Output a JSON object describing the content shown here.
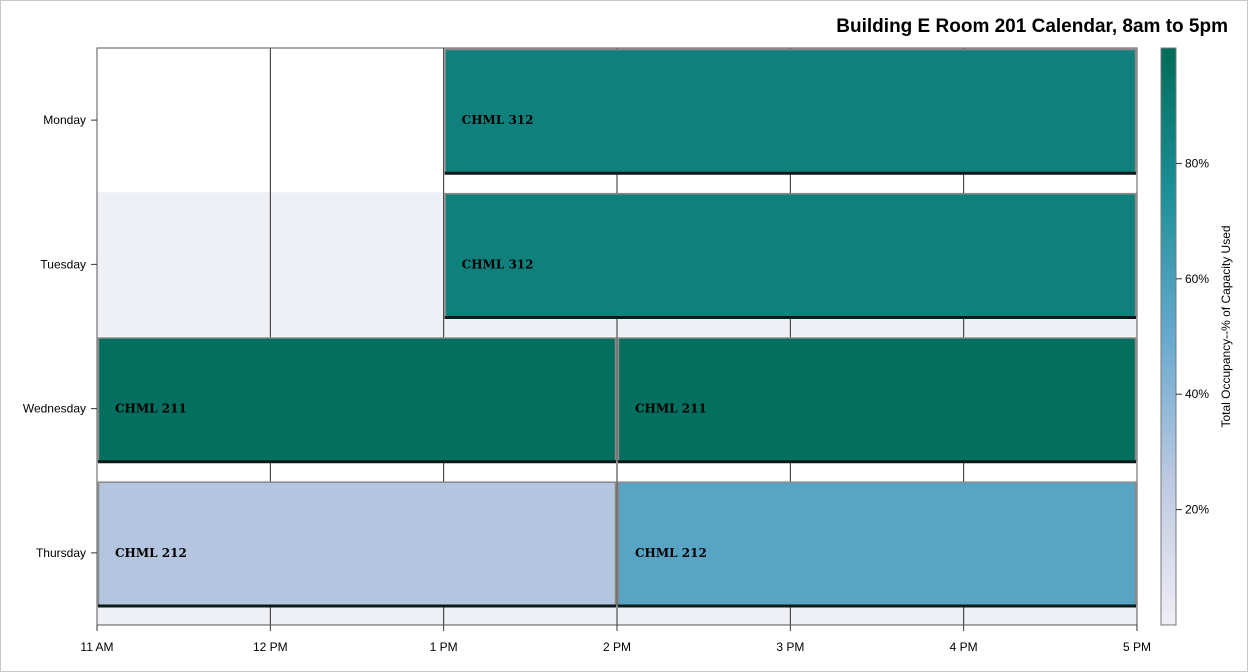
{
  "chart_data": {
    "type": "heatmap",
    "title": "Building E Room 201 Calendar, 8am to 5pm",
    "xlabel": "",
    "ylabel": "",
    "x_ticks": [
      "11 AM",
      "12 PM",
      "1 PM",
      "2 PM",
      "3 PM",
      "4 PM",
      "5 PM"
    ],
    "x_range_hours": [
      11,
      17
    ],
    "days": [
      "Monday",
      "Tuesday",
      "Wednesday",
      "Thursday"
    ],
    "events": [
      {
        "day": "Monday",
        "start_hour": 13,
        "end_hour": 17,
        "label": "CHML 312",
        "occupancy_pct": 86
      },
      {
        "day": "Tuesday",
        "start_hour": 13,
        "end_hour": 17,
        "label": "CHML 312",
        "occupancy_pct": 86
      },
      {
        "day": "Wednesday",
        "start_hour": 11,
        "end_hour": 14,
        "label": "CHML 211",
        "occupancy_pct": 98
      },
      {
        "day": "Wednesday",
        "start_hour": 14,
        "end_hour": 17,
        "label": "CHML 211",
        "occupancy_pct": 98
      },
      {
        "day": "Thursday",
        "start_hour": 11,
        "end_hour": 14,
        "label": "CHML 212",
        "occupancy_pct": 28
      },
      {
        "day": "Thursday",
        "start_hour": 14,
        "end_hour": 17,
        "label": "CHML 212",
        "occupancy_pct": 55
      }
    ],
    "colorbar": {
      "label": "Total Occupancy--% of Capacity Used",
      "ticks": [
        "20%",
        "40%",
        "60%",
        "80%"
      ],
      "tick_values": [
        20,
        40,
        60,
        80
      ],
      "range": [
        0,
        100
      ],
      "colors": [
        "#f1eef6",
        "#bdc9e1",
        "#67a9cf",
        "#1c9099",
        "#016c59"
      ]
    },
    "grid": true
  }
}
